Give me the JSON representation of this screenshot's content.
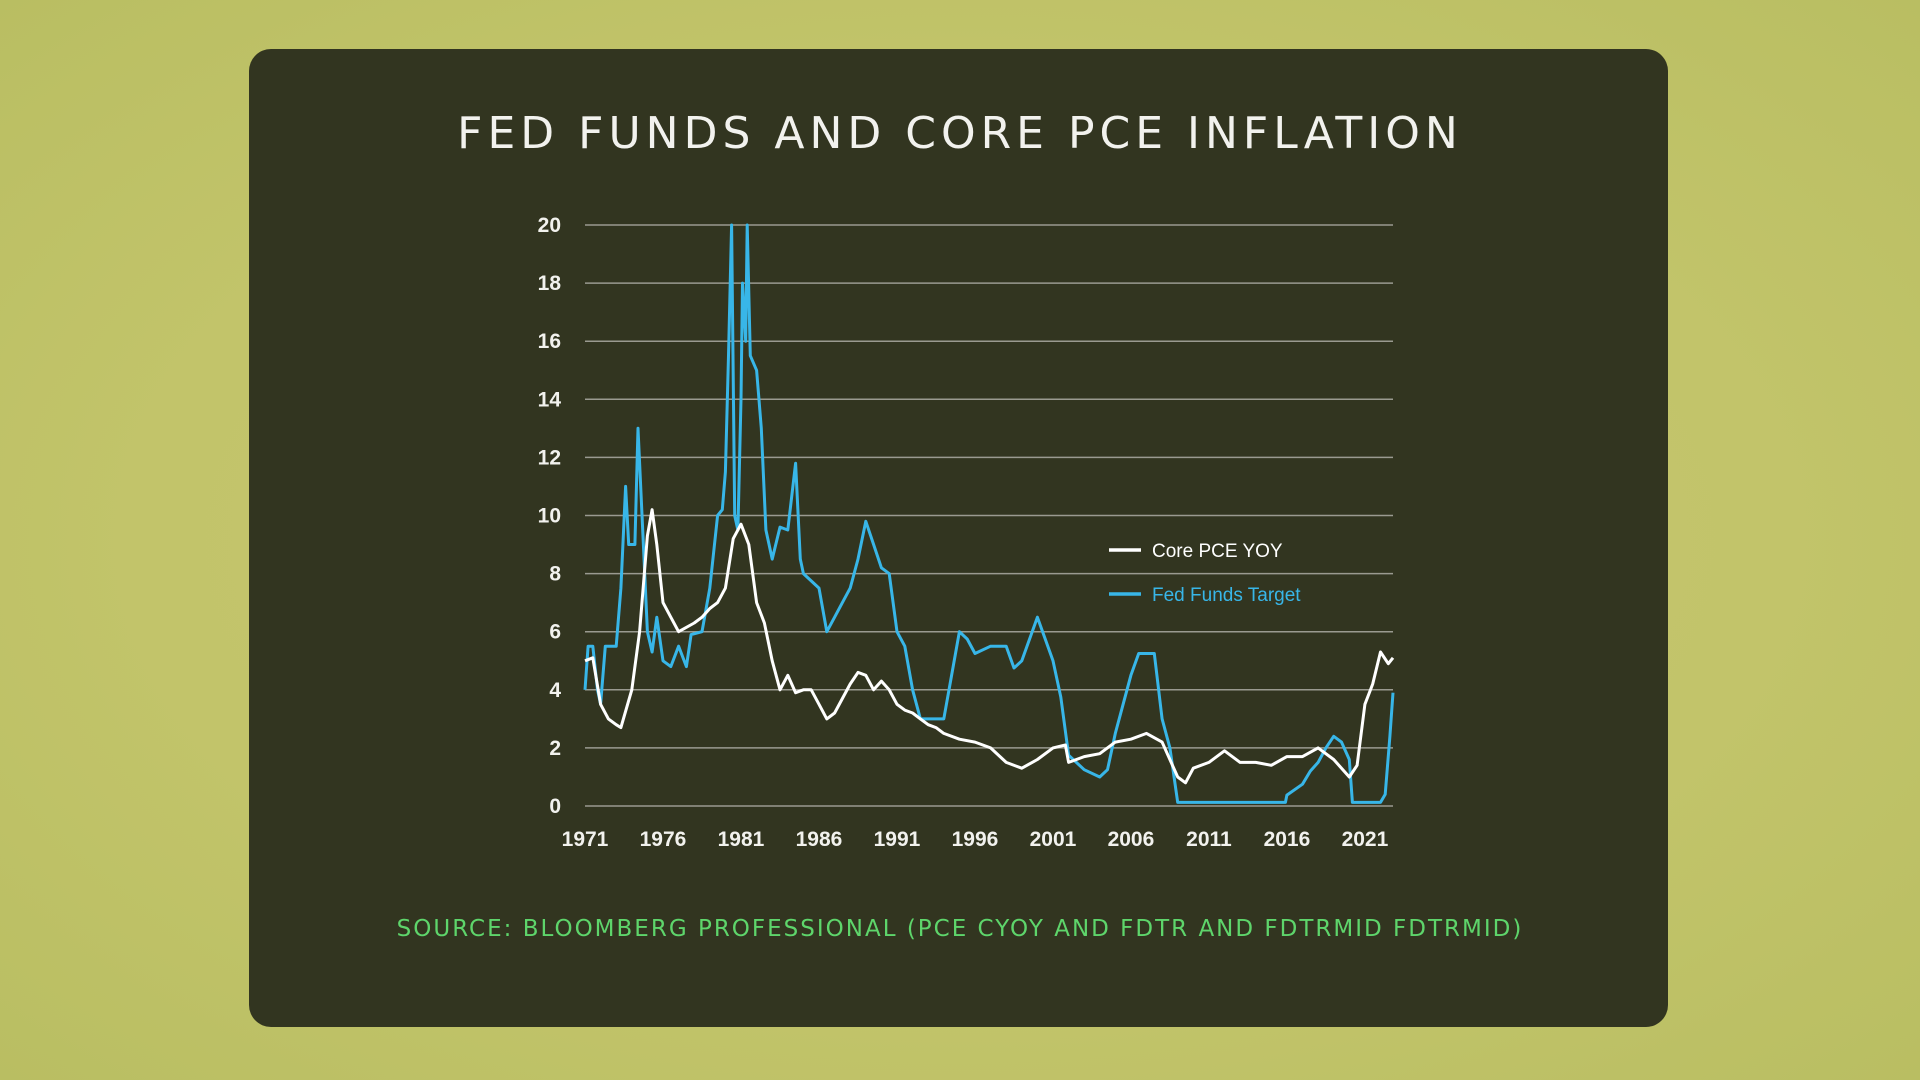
{
  "colors": {
    "background": "#c4c46a",
    "card": "#323520",
    "core_pce": "#ffffff",
    "fed_funds": "#38b6e8",
    "source": "#5ed56b",
    "grid": "#9a9a90"
  },
  "chart_data": {
    "type": "line",
    "title": "FED FUNDS AND CORE PCE INFLATION",
    "xlabel": "",
    "ylabel": "",
    "xlim": [
      1971,
      2022.8
    ],
    "ylim": [
      0,
      20
    ],
    "grid": true,
    "legend_position": "center-right",
    "xticks": [
      "1971",
      "1976",
      "1981",
      "1986",
      "1991",
      "1996",
      "2001",
      "2006",
      "2011",
      "2016",
      "2021"
    ],
    "yticks": [
      "0",
      "2",
      "4",
      "6",
      "8",
      "10",
      "12",
      "14",
      "16",
      "18",
      "20"
    ],
    "series": [
      {
        "name": "Core PCE YOY",
        "color": "#ffffff",
        "points": [
          [
            1971,
            5.0
          ],
          [
            1971.5,
            5.1
          ],
          [
            1972,
            3.5
          ],
          [
            1972.5,
            3.0
          ],
          [
            1973,
            2.8
          ],
          [
            1973.3,
            2.7
          ],
          [
            1974,
            4.0
          ],
          [
            1974.5,
            6.0
          ],
          [
            1975,
            9.3
          ],
          [
            1975.3,
            10.2
          ],
          [
            1975.6,
            9.0
          ],
          [
            1976,
            7.0
          ],
          [
            1976.5,
            6.5
          ],
          [
            1977,
            6.0
          ],
          [
            1978,
            6.3
          ],
          [
            1978.5,
            6.5
          ],
          [
            1979,
            6.8
          ],
          [
            1979.5,
            7.0
          ],
          [
            1980,
            7.5
          ],
          [
            1980.5,
            9.2
          ],
          [
            1981,
            9.7
          ],
          [
            1981.5,
            9.0
          ],
          [
            1982,
            7.0
          ],
          [
            1982.5,
            6.3
          ],
          [
            1983,
            5.0
          ],
          [
            1983.5,
            4.0
          ],
          [
            1984,
            4.5
          ],
          [
            1984.5,
            3.9
          ],
          [
            1985,
            4.0
          ],
          [
            1985.5,
            4.0
          ],
          [
            1986,
            3.5
          ],
          [
            1986.5,
            3.0
          ],
          [
            1987,
            3.2
          ],
          [
            1987.5,
            3.7
          ],
          [
            1988,
            4.2
          ],
          [
            1988.5,
            4.6
          ],
          [
            1989,
            4.5
          ],
          [
            1989.5,
            4.0
          ],
          [
            1990,
            4.3
          ],
          [
            1990.5,
            4.0
          ],
          [
            1991,
            3.5
          ],
          [
            1991.5,
            3.3
          ],
          [
            1992,
            3.2
          ],
          [
            1992.5,
            3.0
          ],
          [
            1993,
            2.8
          ],
          [
            1993.5,
            2.7
          ],
          [
            1994,
            2.5
          ],
          [
            1995,
            2.3
          ],
          [
            1996,
            2.2
          ],
          [
            1997,
            2.0
          ],
          [
            1998,
            1.5
          ],
          [
            1999,
            1.3
          ],
          [
            2000,
            1.6
          ],
          [
            2001,
            2.0
          ],
          [
            2001.8,
            2.1
          ],
          [
            2002,
            1.5
          ],
          [
            2003,
            1.7
          ],
          [
            2004,
            1.8
          ],
          [
            2005,
            2.2
          ],
          [
            2006,
            2.3
          ],
          [
            2007,
            2.5
          ],
          [
            2008,
            2.2
          ],
          [
            2009,
            1.0
          ],
          [
            2009.5,
            0.8
          ],
          [
            2010,
            1.3
          ],
          [
            2011,
            1.5
          ],
          [
            2012,
            1.9
          ],
          [
            2013,
            1.5
          ],
          [
            2014,
            1.5
          ],
          [
            2015,
            1.4
          ],
          [
            2016,
            1.7
          ],
          [
            2017,
            1.7
          ],
          [
            2018,
            2.0
          ],
          [
            2019,
            1.6
          ],
          [
            2020,
            1.0
          ],
          [
            2020.5,
            1.4
          ],
          [
            2021,
            3.5
          ],
          [
            2021.5,
            4.2
          ],
          [
            2022,
            5.3
          ],
          [
            2022.5,
            4.9
          ],
          [
            2022.8,
            5.1
          ]
        ]
      },
      {
        "name": "Fed Funds Target",
        "color": "#38b6e8",
        "points": [
          [
            1971,
            4.0
          ],
          [
            1971.2,
            5.5
          ],
          [
            1971.5,
            5.5
          ],
          [
            1971.8,
            4.0
          ],
          [
            1972,
            3.5
          ],
          [
            1972.3,
            5.5
          ],
          [
            1973,
            5.5
          ],
          [
            1973.3,
            7.5
          ],
          [
            1973.6,
            11
          ],
          [
            1973.8,
            9.0
          ],
          [
            1974.2,
            9.0
          ],
          [
            1974.4,
            13
          ],
          [
            1974.7,
            9.5
          ],
          [
            1975,
            6.0
          ],
          [
            1975.3,
            5.3
          ],
          [
            1975.6,
            6.5
          ],
          [
            1976,
            5.0
          ],
          [
            1976.5,
            4.8
          ],
          [
            1977,
            5.5
          ],
          [
            1977.5,
            4.8
          ],
          [
            1977.8,
            5.9
          ],
          [
            1978.5,
            6.0
          ],
          [
            1979,
            7.5
          ],
          [
            1979.5,
            10.0
          ],
          [
            1979.8,
            10.2
          ],
          [
            1980,
            11.5
          ],
          [
            1980.2,
            15.5
          ],
          [
            1980.4,
            20
          ],
          [
            1980.6,
            10
          ],
          [
            1980.8,
            9.5
          ],
          [
            1981,
            14
          ],
          [
            1981.1,
            18
          ],
          [
            1981.3,
            16
          ],
          [
            1981.4,
            20
          ],
          [
            1981.6,
            15.5
          ],
          [
            1982,
            15
          ],
          [
            1982.3,
            13
          ],
          [
            1982.6,
            9.5
          ],
          [
            1983,
            8.5
          ],
          [
            1983.5,
            9.6
          ],
          [
            1984,
            9.5
          ],
          [
            1984.5,
            11.8
          ],
          [
            1984.8,
            8.5
          ],
          [
            1985,
            8.0
          ],
          [
            1986,
            7.5
          ],
          [
            1986.5,
            6.0
          ],
          [
            1987,
            6.5
          ],
          [
            1987.5,
            7.0
          ],
          [
            1988,
            7.5
          ],
          [
            1988.5,
            8.5
          ],
          [
            1989,
            9.8
          ],
          [
            1989.5,
            9.0
          ],
          [
            1990,
            8.2
          ],
          [
            1990.5,
            8.0
          ],
          [
            1991,
            6.0
          ],
          [
            1991.5,
            5.5
          ],
          [
            1992,
            4.0
          ],
          [
            1992.5,
            3.0
          ],
          [
            1993,
            3.0
          ],
          [
            1994,
            3.0
          ],
          [
            1994.5,
            4.5
          ],
          [
            1995,
            6.0
          ],
          [
            1995.5,
            5.75
          ],
          [
            1996,
            5.25
          ],
          [
            1997,
            5.5
          ],
          [
            1998,
            5.5
          ],
          [
            1998.5,
            4.75
          ],
          [
            1999,
            5.0
          ],
          [
            2000,
            6.5
          ],
          [
            2001,
            5.0
          ],
          [
            2001.5,
            3.75
          ],
          [
            2002,
            1.75
          ],
          [
            2003,
            1.25
          ],
          [
            2004,
            1.0
          ],
          [
            2004.5,
            1.25
          ],
          [
            2005,
            2.5
          ],
          [
            2006,
            4.5
          ],
          [
            2006.5,
            5.25
          ],
          [
            2007,
            5.25
          ],
          [
            2007.5,
            5.25
          ],
          [
            2008,
            3.0
          ],
          [
            2008.5,
            2.0
          ],
          [
            2009,
            0.125
          ],
          [
            2015.9,
            0.125
          ],
          [
            2016,
            0.375
          ],
          [
            2017,
            0.75
          ],
          [
            2017.5,
            1.2
          ],
          [
            2018,
            1.5
          ],
          [
            2018.5,
            2.0
          ],
          [
            2019,
            2.4
          ],
          [
            2019.5,
            2.2
          ],
          [
            2020,
            1.6
          ],
          [
            2020.2,
            0.125
          ],
          [
            2022,
            0.125
          ],
          [
            2022.3,
            0.4
          ],
          [
            2022.6,
            2.4
          ],
          [
            2022.8,
            3.9
          ]
        ]
      }
    ],
    "source": "SOURCE: BLOOMBERG PROFESSIONAL (PCE CYOY AND FDTR AND FDTRMID FDTRMID)"
  }
}
